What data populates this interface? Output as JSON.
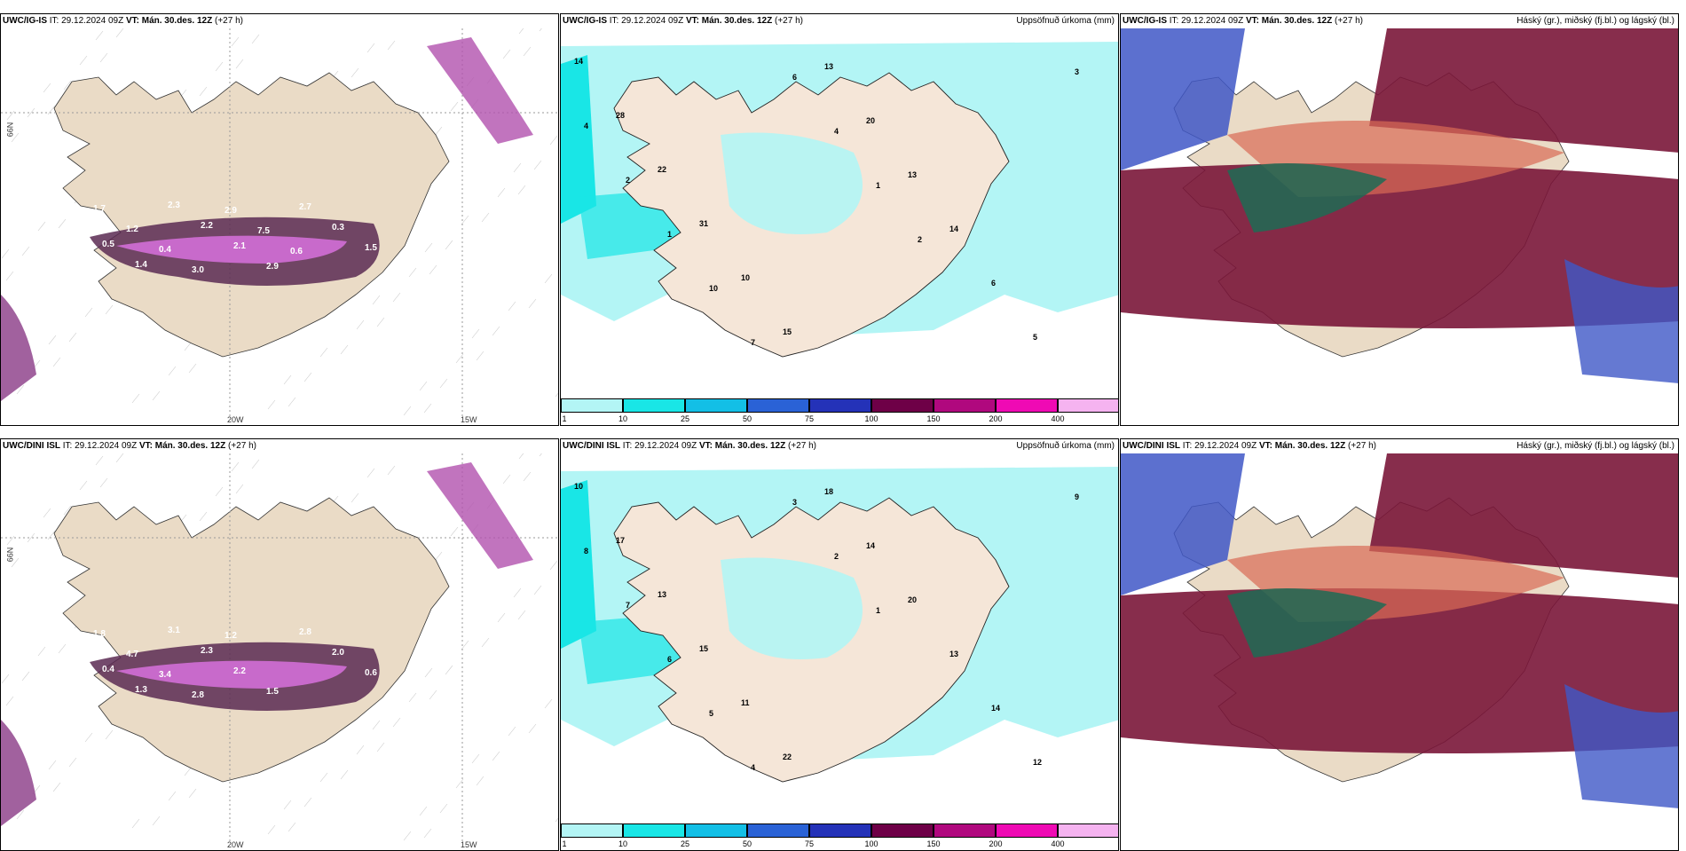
{
  "panels": [
    {
      "model": "UWC/IG-IS",
      "it": " IT: 29.12.2024 09Z ",
      "vt_label": "VT:",
      "vt": "Mán. 30.des. 12Z",
      "lead": " (+27 h)",
      "right": ""
    },
    {
      "model": "UWC/IG-IS",
      "it": " IT: 29.12.2024 09Z ",
      "vt_label": "VT:",
      "vt": "Mán. 30.des. 12Z",
      "lead": " (+27 h)",
      "right": "Uppsöfnuð úrkoma (mm)"
    },
    {
      "model": "UWC/IG-IS",
      "it": " IT: 29.12.2024 09Z ",
      "vt_label": "VT:",
      "vt": "Mán. 30.des. 12Z",
      "lead": " (+27 h)",
      "right": "Háský (gr.), miðský (fj.bl.) og lágský (bl.)"
    },
    {
      "model": "UWC/DINI ISL",
      "it": " IT: 29.12.2024 09Z ",
      "vt_label": "VT:",
      "vt": "Mán. 30.des. 12Z",
      "lead": " (+27 h)",
      "right": ""
    },
    {
      "model": "UWC/DINI ISL",
      "it": " IT: 29.12.2024 09Z ",
      "vt_label": "VT:",
      "vt": "Mán. 30.des. 12Z",
      "lead": " (+27 h)",
      "right": "Uppsöfnuð úrkoma (mm)"
    },
    {
      "model": "UWC/DINI ISL",
      "it": " IT: 29.12.2024 09Z ",
      "vt_label": "VT:",
      "vt": "Mán. 30.des. 12Z",
      "lead": " (+27 h)",
      "right": "Háský (gr.), miðský (fj.bl.) og lágský (bl.)"
    }
  ],
  "axis": {
    "lat": "66N",
    "lon1": "20W",
    "lon2": "15W"
  },
  "colorbar": {
    "ticks": [
      "1",
      "10",
      "25",
      "50",
      "75",
      "100",
      "150",
      "200",
      "400"
    ],
    "colors": [
      "#b3f5f5",
      "#19e6e6",
      "#13bfe6",
      "#2a62d6",
      "#2432b8",
      "#6e0047",
      "#b0087e",
      "#ef0ab4",
      "#f5b3f0"
    ]
  },
  "labels": {
    "snow_top": [
      "0.3",
      "0.4",
      "0.5",
      "1.4",
      "2.3",
      "2.2",
      "2.1",
      "2.9",
      "2.7",
      "0.3",
      "1.5",
      "0.8",
      "1.7",
      "1.2",
      "0.4",
      "3.0",
      "2.9",
      "7.5",
      "0.6"
    ],
    "snow_bot": [
      "0.7",
      "0.5",
      "0.4",
      "1.3",
      "3.1",
      "2.3",
      "2.2",
      "1.5",
      "2.8",
      "2.0",
      "0.6",
      "3.5",
      "1.8",
      "4.7",
      "3.4",
      "2.8",
      "1.2"
    ],
    "precip_top": [
      "14",
      "28",
      "22",
      "31",
      "10",
      "15",
      "13",
      "20",
      "13",
      "14",
      "6",
      "5",
      "3",
      "4",
      "2",
      "1",
      "10",
      "7",
      "6",
      "4",
      "1",
      "2"
    ],
    "precip_bot": [
      "10",
      "17",
      "13",
      "15",
      "11",
      "22",
      "18",
      "14",
      "20",
      "13",
      "14",
      "12",
      "9",
      "8",
      "7",
      "6",
      "5",
      "4",
      "3",
      "2",
      "1"
    ]
  }
}
